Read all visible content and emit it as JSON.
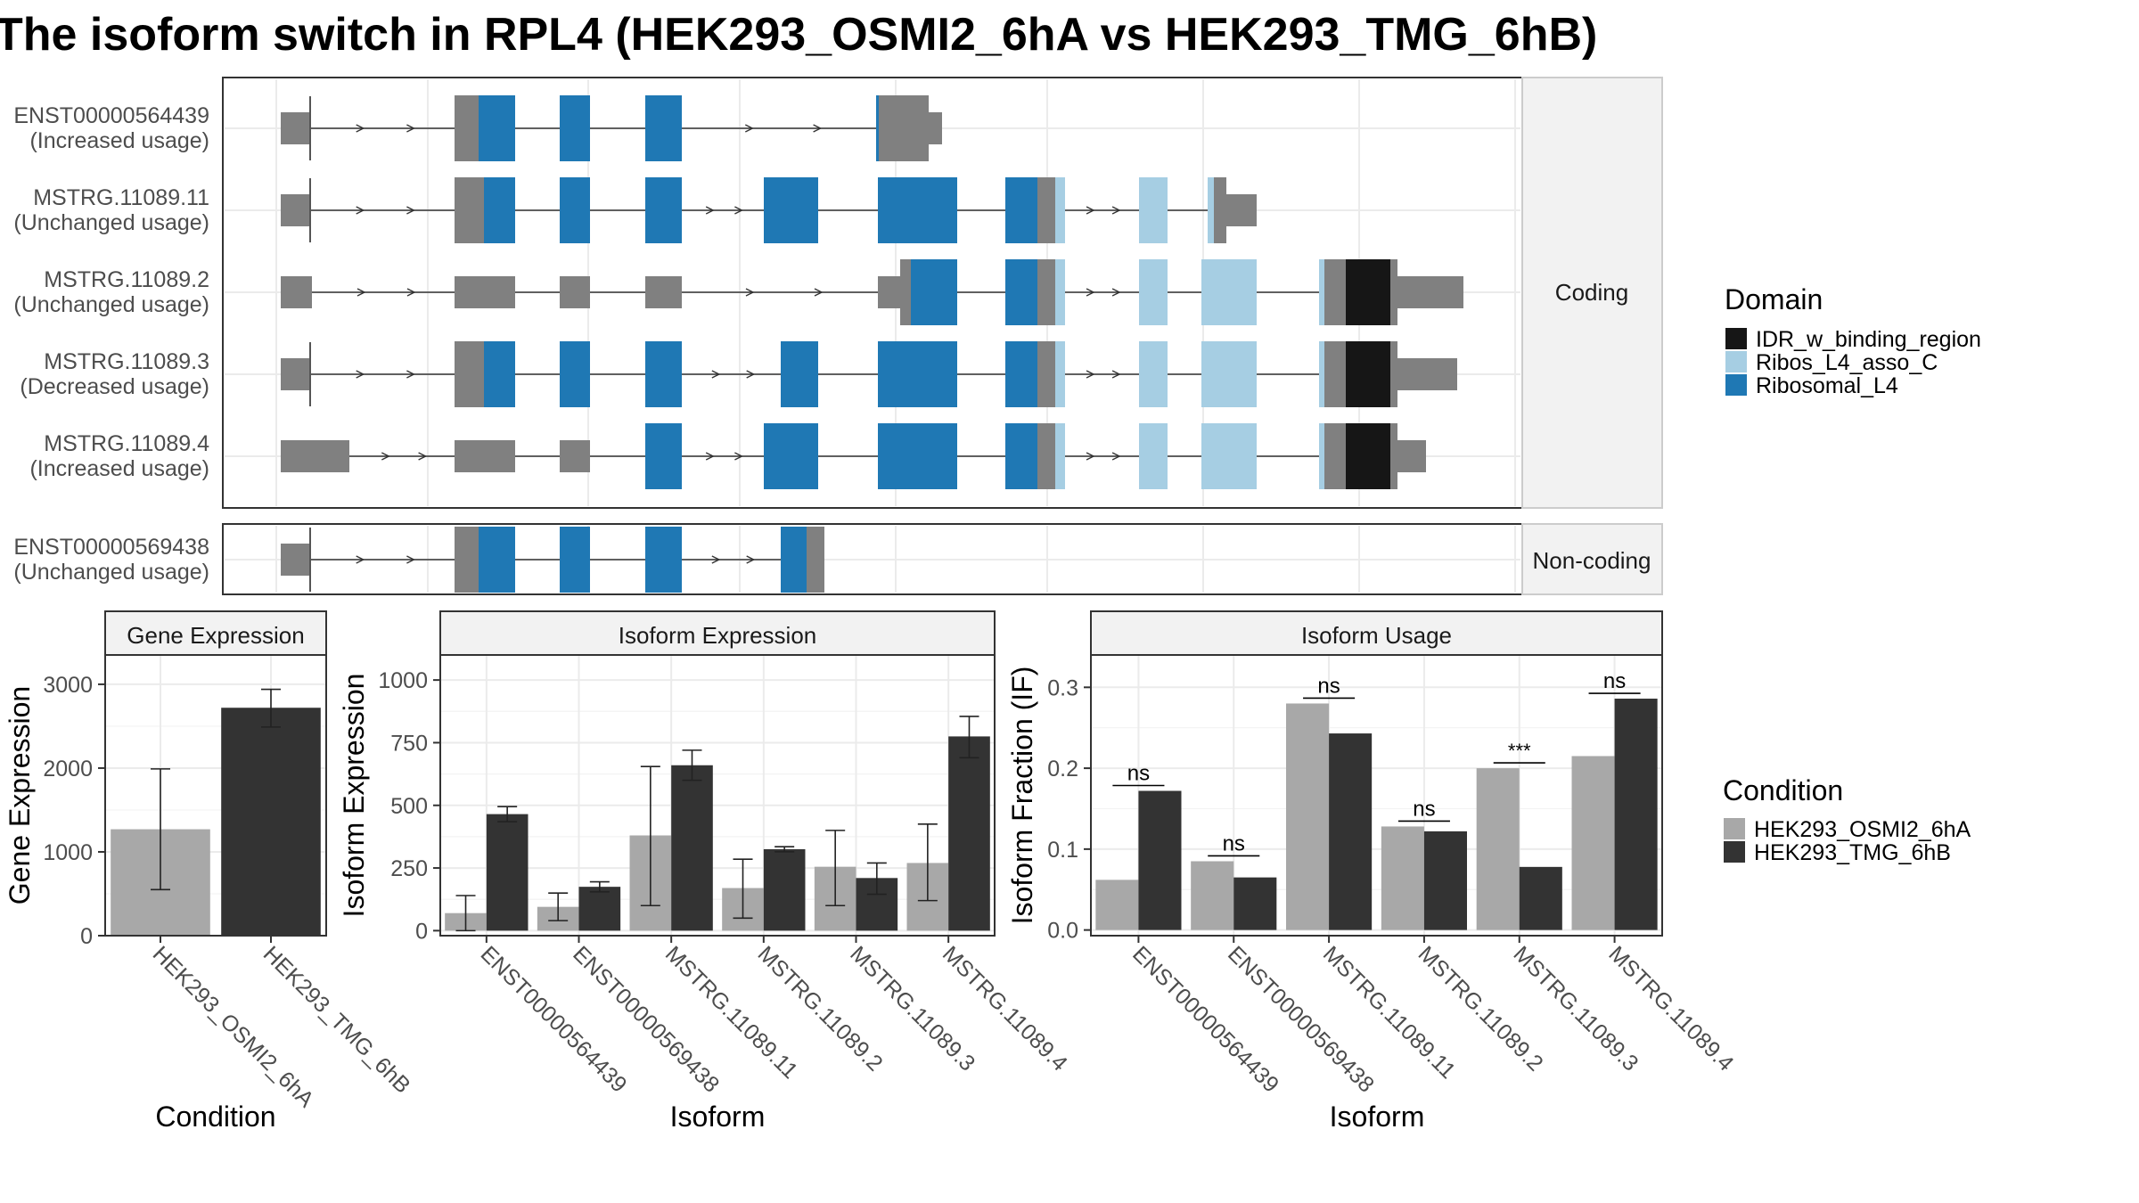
{
  "title": "The isoform switch in RPL4 (HEK293_OSMI2_6hA vs HEK293_TMG_6hB)",
  "colors": {
    "IDR_w_binding_region": "#161616",
    "Ribos_L4_asso_C": "#a6cee3",
    "Ribosomal_L4": "#1f78b4",
    "utr": "#808080",
    "intron": "#333333",
    "HEK293_OSMI2_6hA": "#a8a8a8",
    "HEK293_TMG_6hB": "#333333"
  },
  "structure": {
    "facets": [
      "Coding",
      "Non-coding"
    ],
    "coding": [
      {
        "id": "ENST00000564439",
        "usage": "(Increased usage)"
      },
      {
        "id": "MSTRG.11089.11",
        "usage": "(Unchanged usage)"
      },
      {
        "id": "MSTRG.11089.2",
        "usage": "(Unchanged usage)"
      },
      {
        "id": "MSTRG.11089.3",
        "usage": "(Decreased usage)"
      },
      {
        "id": "MSTRG.11089.4",
        "usage": "(Increased usage)"
      }
    ],
    "noncoding": [
      {
        "id": "ENST00000569438",
        "usage": "(Unchanged usage)"
      }
    ]
  },
  "legend_domain": {
    "title": "Domain",
    "items": [
      "IDR_w_binding_region",
      "Ribos_L4_asso_C",
      "Ribosomal_L4"
    ]
  },
  "legend_condition": {
    "title": "Condition",
    "items": [
      "HEK293_OSMI2_6hA",
      "HEK293_TMG_6hB"
    ]
  },
  "chart_data": [
    {
      "type": "bar",
      "title": "Gene Expression",
      "xlabel": "Condition",
      "ylabel": "Gene Expression",
      "categories": [
        "HEK293_OSMI2_6hA",
        "HEK293_TMG_6hB"
      ],
      "values": [
        1270,
        2720
      ],
      "error_low": [
        550,
        2490
      ],
      "error_high": [
        1990,
        2940
      ],
      "ylim": [
        0,
        3350
      ],
      "yticks": [
        0,
        1000,
        2000,
        3000
      ]
    },
    {
      "type": "bar",
      "title": "Isoform Expression",
      "xlabel": "Isoform",
      "ylabel": "Isoform Expression",
      "categories": [
        "ENST00000564439",
        "ENST00000569438",
        "MSTRG.11089.11",
        "MSTRG.11089.2",
        "MSTRG.11089.3",
        "MSTRG.11089.4"
      ],
      "series": [
        {
          "name": "HEK293_OSMI2_6hA",
          "values": [
            70,
            95,
            380,
            170,
            255,
            270
          ],
          "error_low": [
            0,
            40,
            100,
            50,
            100,
            120
          ],
          "error_high": [
            140,
            150,
            655,
            285,
            400,
            425
          ]
        },
        {
          "name": "HEK293_TMG_6hB",
          "values": [
            465,
            175,
            660,
            325,
            210,
            775
          ],
          "error_low": [
            435,
            155,
            600,
            315,
            145,
            690
          ],
          "error_high": [
            495,
            195,
            720,
            335,
            270,
            855
          ]
        }
      ],
      "ylim": [
        -20,
        1100
      ],
      "yticks": [
        0,
        250,
        500,
        750,
        1000
      ]
    },
    {
      "type": "bar",
      "title": "Isoform Usage",
      "xlabel": "Isoform",
      "ylabel": "Isoform Fraction (IF)",
      "categories": [
        "ENST00000564439",
        "ENST00000569438",
        "MSTRG.11089.11",
        "MSTRG.11089.2",
        "MSTRG.11089.3",
        "MSTRG.11089.4"
      ],
      "series": [
        {
          "name": "HEK293_OSMI2_6hA",
          "values": [
            0.062,
            0.085,
            0.28,
            0.128,
            0.2,
            0.215
          ]
        },
        {
          "name": "HEK293_TMG_6hB",
          "values": [
            0.172,
            0.065,
            0.243,
            0.122,
            0.078,
            0.286
          ]
        }
      ],
      "significance": [
        "ns",
        "ns",
        "ns",
        "ns",
        "***",
        "ns"
      ],
      "ylim": [
        -0.007,
        0.34
      ],
      "yticks": [
        0.0,
        0.1,
        0.2,
        0.3
      ],
      "ytick_labels": [
        "0.0",
        "0.1",
        "0.2",
        "0.3"
      ]
    }
  ]
}
